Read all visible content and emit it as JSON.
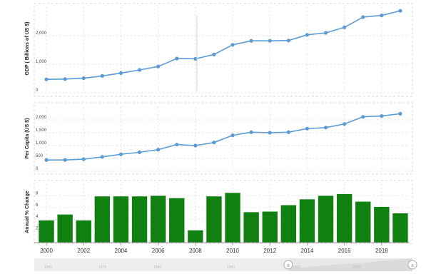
{
  "chart_data": [
    {
      "type": "line",
      "ylabel": "GDP ( Billions of US $)",
      "x": [
        2000,
        2001,
        2002,
        2003,
        2004,
        2005,
        2006,
        2007,
        2008,
        2009,
        2010,
        2011,
        2012,
        2013,
        2014,
        2015,
        2016,
        2017,
        2018,
        2019
      ],
      "series": [
        {
          "values": [
            470,
            480,
            510,
            590,
            690,
            800,
            920,
            1200,
            1190,
            1340,
            1680,
            1820,
            1820,
            1830,
            2030,
            2100,
            2290,
            2650,
            2710,
            2870
          ]
        }
      ],
      "ylim": [
        0,
        3000
      ],
      "yticks": [
        0,
        1000,
        2000
      ],
      "yticklabels": [
        "0",
        "1,000",
        "2,000"
      ],
      "color": "#5b9bd5",
      "grid": true
    },
    {
      "type": "line",
      "ylabel": "Per Capita (US $)",
      "x": [
        2000,
        2001,
        2002,
        2003,
        2004,
        2005,
        2006,
        2007,
        2008,
        2009,
        2010,
        2011,
        2012,
        2013,
        2014,
        2015,
        2016,
        2017,
        2018,
        2019
      ],
      "series": [
        {
          "values": [
            440,
            440,
            470,
            560,
            660,
            740,
            840,
            1040,
            1000,
            1120,
            1400,
            1520,
            1500,
            1520,
            1660,
            1700,
            1840,
            2120,
            2150,
            2240
          ]
        }
      ],
      "ylim": [
        0,
        2500
      ],
      "yticks": [
        0,
        500,
        1000,
        1500,
        2000
      ],
      "yticklabels": [
        "0",
        "500",
        "1,000",
        "1,500",
        "2,000"
      ],
      "color": "#5b9bd5",
      "grid": true
    },
    {
      "type": "bar",
      "ylabel": "Annual % Change",
      "categories": [
        "2000",
        "2001",
        "2002",
        "2003",
        "2004",
        "2005",
        "2006",
        "2007",
        "2008",
        "2009",
        "2010",
        "2011",
        "2012",
        "2013",
        "2014",
        "2015",
        "2016",
        "2017",
        "2018",
        "2019"
      ],
      "values": [
        3.8,
        4.8,
        3.8,
        7.9,
        7.9,
        7.9,
        8.0,
        7.6,
        2.1,
        7.9,
        8.5,
        5.2,
        5.3,
        6.4,
        7.4,
        8.0,
        8.3,
        7.0,
        6.1,
        5.0
      ],
      "ylim": [
        0,
        10
      ],
      "yticks": [
        2,
        4,
        6,
        8
      ],
      "yticklabels": [
        "2",
        "4",
        "6",
        "8"
      ],
      "color": "#108010",
      "grid": true
    }
  ],
  "xaxis": {
    "ticklabels": [
      "2000",
      "2002",
      "2004",
      "2006",
      "2008",
      "2010",
      "2012",
      "2014",
      "2016",
      "2018"
    ]
  },
  "navigator": {
    "labels": [
      "1960",
      "1970",
      "1980",
      "1990",
      "2000",
      "2010"
    ],
    "left_handle": "≡",
    "right_handle": "≡"
  }
}
